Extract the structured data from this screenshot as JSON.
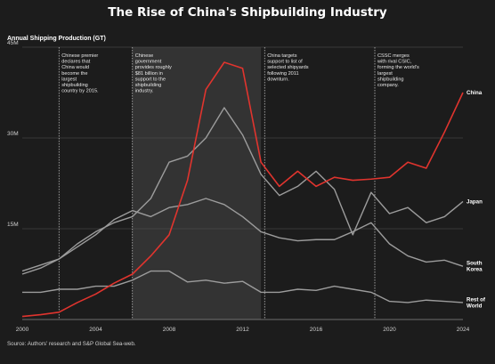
{
  "chart_data": {
    "type": "line",
    "title": "The Rise of China's Shipbuilding Industry",
    "ylabel": "Annual Shipping Production (GT)",
    "xlabel": "",
    "xlim": [
      2000,
      2024
    ],
    "ylim": [
      0,
      45
    ],
    "y_ticks": [
      15,
      30,
      45
    ],
    "y_tick_labels": [
      "15M",
      "30M",
      "45M"
    ],
    "x_ticks": [
      2000,
      2004,
      2008,
      2012,
      2016,
      2020,
      2024
    ],
    "x_tick_labels": [
      "2000",
      "2004",
      "2008",
      "2012",
      "2016",
      "2020",
      "2024"
    ],
    "grid": true,
    "x": [
      2000,
      2001,
      2002,
      2003,
      2004,
      2005,
      2006,
      2007,
      2008,
      2009,
      2010,
      2011,
      2012,
      2013,
      2014,
      2015,
      2016,
      2017,
      2018,
      2019,
      2020,
      2021,
      2022,
      2023,
      2024
    ],
    "series": [
      {
        "name": "China",
        "color": "#e0342e",
        "values": [
          0.5,
          0.8,
          1.2,
          2.8,
          4.2,
          6,
          7.5,
          10.5,
          14,
          23,
          38,
          42.5,
          41.5,
          26,
          22,
          24.5,
          22,
          23.5,
          23,
          23.2,
          23.5,
          26,
          25,
          31,
          37.5
        ]
      },
      {
        "name": "South Korea",
        "color": "#9c9c9c",
        "values": [
          7.5,
          8.5,
          10,
          12,
          14,
          16.5,
          18,
          17,
          18.5,
          19,
          20,
          19,
          17,
          14.5,
          13.5,
          13,
          13.2,
          13.2,
          14.5,
          16,
          12.5,
          10.5,
          9.5,
          9.8,
          8.8
        ]
      },
      {
        "name": "Japan",
        "color": "#9c9c9c",
        "values": [
          8,
          9,
          10,
          12.5,
          14.5,
          16,
          17,
          20,
          26,
          27,
          30,
          35,
          30.5,
          24,
          20.5,
          22,
          24.5,
          21.5,
          14,
          21,
          17.5,
          18.5,
          16,
          17,
          19.5
        ]
      },
      {
        "name": "Rest of World",
        "color": "#9c9c9c",
        "values": [
          4.5,
          4.5,
          5,
          5,
          5.5,
          5.5,
          6.5,
          8,
          8,
          6.2,
          6.5,
          6,
          6.3,
          4.5,
          4.5,
          5,
          4.8,
          5.5,
          5,
          4.5,
          3,
          2.8,
          3.2,
          3,
          2.8
        ]
      }
    ],
    "end_labels": [
      {
        "series": "China",
        "lines": [
          "China"
        ]
      },
      {
        "series": "South Korea",
        "lines": [
          "South",
          "Korea"
        ]
      },
      {
        "series": "Japan",
        "lines": [
          "Japan"
        ]
      },
      {
        "series": "Rest of World",
        "lines": [
          "Rest of",
          "World"
        ]
      }
    ],
    "shaded_period": [
      2006,
      2013
    ],
    "annotations": [
      {
        "x": 2002,
        "lines": [
          "Chinese premier",
          "declares that",
          "China would",
          "become the",
          "largest",
          "shipbuilding",
          "country by 2015."
        ]
      },
      {
        "x": 2006,
        "lines": [
          "Chinese",
          "government",
          "provides roughly",
          "$81 billion in",
          "support to the",
          "shipbuilding",
          "industry."
        ]
      },
      {
        "x": 2013.2,
        "lines": [
          "China targets",
          "support to list of",
          "selected shipyards",
          "following 2011",
          "downturn."
        ]
      },
      {
        "x": 2019.2,
        "lines": [
          "CSSC merges",
          "with rival CSIC,",
          "forming the world's",
          "largest",
          "shipbuilding",
          "company."
        ]
      }
    ],
    "source": "Source: Authors' research and S&P Global Sea-web."
  }
}
